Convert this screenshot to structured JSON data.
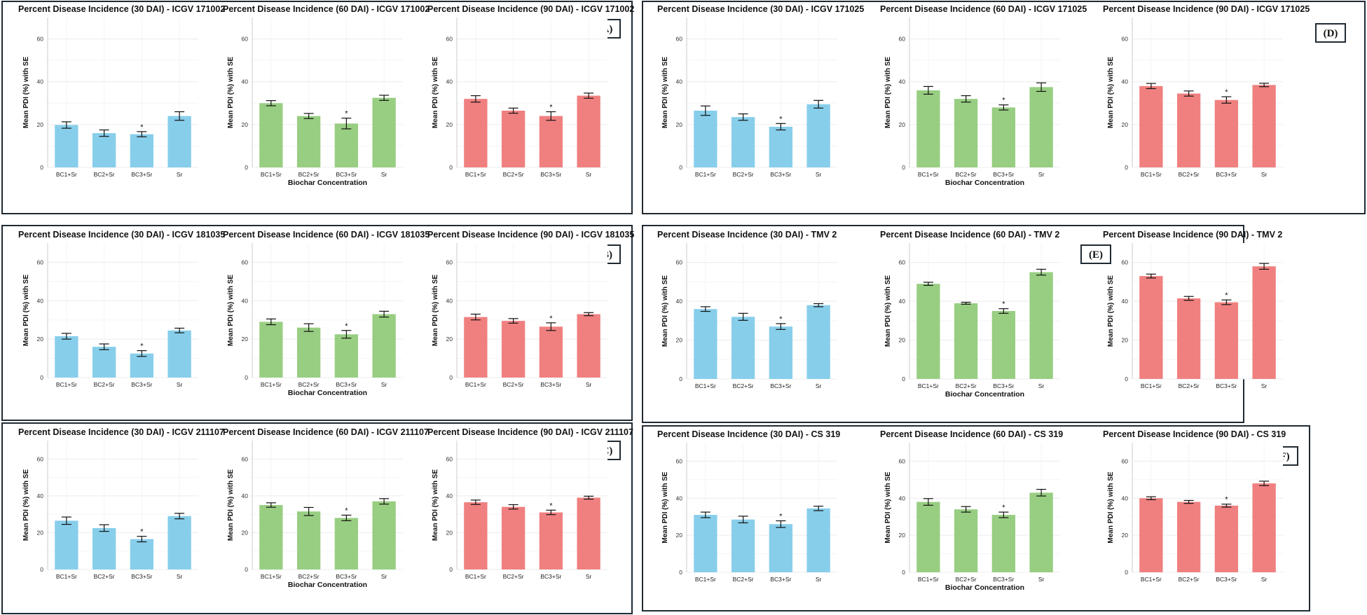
{
  "figure": {
    "panels": [
      {
        "letter": "(A)",
        "cultivar": "ICGV 171002",
        "xlabel": "Biochar Concentration",
        "ylabel": "Mean PDI (%) with SE"
      },
      {
        "letter": "(B)",
        "cultivar": "ICGV 181035",
        "xlabel": "Biochar Concentration",
        "ylabel": "Mean PDI (%) with SE"
      },
      {
        "letter": "(C)",
        "cultivar": "ICGV 211107",
        "xlabel": "Biochar Concentration",
        "ylabel": "Mean PDI (%) with SE"
      },
      {
        "letter": "(D)",
        "cultivar": "ICGV 171025",
        "xlabel": "Biochar Concentration",
        "ylabel": "Mean PDI (%) with SE"
      },
      {
        "letter": "(E)",
        "cultivar": "TMV 2",
        "xlabel": "Biochar Concentration",
        "ylabel": "Mean PDI (%) with SE"
      },
      {
        "letter": "(F)",
        "cultivar": "CS 319",
        "xlabel": "Biochar Concentration",
        "ylabel": "Mean PDI (%) with SE"
      }
    ]
  },
  "colors": {
    "dai30": "#87CEEB",
    "dai60": "#98CE82",
    "dai90": "#F08080"
  },
  "chart_data": [
    {
      "panel": 0,
      "type": "bar",
      "title": "Percent Disease Incidence (30 DAI) - ICGV 171002",
      "categories": [
        "BC1+Sr",
        "BC2+Sr",
        "BC3+Sr",
        "Sr"
      ],
      "values": [
        19.8,
        16.0,
        15.5,
        24.0
      ],
      "errors": [
        1.5,
        1.5,
        1.2,
        2.0
      ],
      "significant": [
        false,
        false,
        true,
        false
      ],
      "ylim": [
        0,
        70
      ],
      "yticks": [
        0,
        20,
        40,
        60
      ],
      "xlabel": "",
      "ylabel": "Mean PDI (%) with SE",
      "color": "#87CEEB"
    },
    {
      "panel": 0,
      "type": "bar",
      "title": "Percent Disease Incidence (60 DAI) - ICGV 171002",
      "categories": [
        "BC1+Sr",
        "BC2+Sr",
        "BC3+Sr",
        "Sr"
      ],
      "values": [
        30.0,
        24.0,
        20.5,
        32.5
      ],
      "errors": [
        1.2,
        1.2,
        2.5,
        1.2
      ],
      "significant": [
        false,
        false,
        true,
        false
      ],
      "ylim": [
        0,
        70
      ],
      "yticks": [
        0,
        20,
        40,
        60
      ],
      "xlabel": "",
      "ylabel": "Mean PDI (%) with SE",
      "color": "#98CE82"
    },
    {
      "panel": 0,
      "type": "bar",
      "title": "Percent Disease Incidence (90 DAI) - ICGV 171002",
      "categories": [
        "BC1+Sr",
        "BC2+Sr",
        "BC3+Sr",
        "Sr"
      ],
      "values": [
        32.0,
        26.5,
        24.0,
        33.5
      ],
      "errors": [
        1.5,
        1.2,
        2.0,
        1.2
      ],
      "significant": [
        false,
        false,
        true,
        false
      ],
      "ylim": [
        0,
        70
      ],
      "yticks": [
        0,
        20,
        40,
        60
      ],
      "xlabel": "Biochar Concentration",
      "ylabel": "Mean PDI (%) with SE",
      "color": "#F08080"
    },
    {
      "panel": 1,
      "type": "bar",
      "title": "Percent Disease Incidence (30 DAI) - ICGV 181035",
      "categories": [
        "BC1+Sr",
        "BC2+Sr",
        "BC3+Sr",
        "Sr"
      ],
      "values": [
        21.5,
        16.0,
        12.5,
        24.5
      ],
      "errors": [
        1.5,
        1.5,
        1.5,
        1.2
      ],
      "significant": [
        false,
        false,
        true,
        false
      ],
      "ylim": [
        0,
        70
      ],
      "yticks": [
        0,
        20,
        40,
        60
      ],
      "xlabel": "",
      "ylabel": "Mean PDI (%) with SE",
      "color": "#87CEEB"
    },
    {
      "panel": 1,
      "type": "bar",
      "title": "Percent Disease Incidence (60 DAI) - ICGV 181035",
      "categories": [
        "BC1+Sr",
        "BC2+Sr",
        "BC3+Sr",
        "Sr"
      ],
      "values": [
        29.0,
        26.0,
        22.5,
        33.0
      ],
      "errors": [
        1.5,
        2.0,
        2.0,
        1.5
      ],
      "significant": [
        false,
        false,
        true,
        false
      ],
      "ylim": [
        0,
        70
      ],
      "yticks": [
        0,
        20,
        40,
        60
      ],
      "xlabel": "",
      "ylabel": "Mean PDI (%) with SE",
      "color": "#98CE82"
    },
    {
      "panel": 1,
      "type": "bar",
      "title": "Percent Disease Incidence (90 DAI) - ICGV 181035",
      "categories": [
        "BC1+Sr",
        "BC2+Sr",
        "BC3+Sr",
        "Sr"
      ],
      "values": [
        31.5,
        29.5,
        26.5,
        33.0
      ],
      "errors": [
        1.5,
        1.2,
        2.0,
        0.8
      ],
      "significant": [
        false,
        false,
        true,
        false
      ],
      "ylim": [
        0,
        70
      ],
      "yticks": [
        0,
        20,
        40,
        60
      ],
      "xlabel": "Biochar Concentration",
      "ylabel": "Mean PDI (%) with SE",
      "color": "#F08080"
    },
    {
      "panel": 2,
      "type": "bar",
      "title": "Percent Disease Incidence (30 DAI) - ICGV 211107",
      "categories": [
        "BC1+Sr",
        "BC2+Sr",
        "BC3+Sr",
        "Sr"
      ],
      "values": [
        26.5,
        22.5,
        16.5,
        29.0
      ],
      "errors": [
        2.0,
        1.8,
        1.5,
        1.5
      ],
      "significant": [
        false,
        false,
        true,
        false
      ],
      "ylim": [
        0,
        70
      ],
      "yticks": [
        0,
        20,
        40,
        60
      ],
      "xlabel": "",
      "ylabel": "Mean PDI (%) with SE",
      "color": "#87CEEB"
    },
    {
      "panel": 2,
      "type": "bar",
      "title": "Percent Disease Incidence (60 DAI) - ICGV 211107",
      "categories": [
        "BC1+Sr",
        "BC2+Sr",
        "BC3+Sr",
        "Sr"
      ],
      "values": [
        35.0,
        31.5,
        28.0,
        37.0
      ],
      "errors": [
        1.2,
        2.2,
        1.5,
        1.5
      ],
      "significant": [
        false,
        false,
        true,
        false
      ],
      "ylim": [
        0,
        70
      ],
      "yticks": [
        0,
        20,
        40,
        60
      ],
      "xlabel": "",
      "ylabel": "Mean PDI (%) with SE",
      "color": "#98CE82"
    },
    {
      "panel": 2,
      "type": "bar",
      "title": "Percent Disease Incidence (90 DAI) - ICGV 211107",
      "categories": [
        "BC1+Sr",
        "BC2+Sr",
        "BC3+Sr",
        "Sr"
      ],
      "values": [
        36.5,
        34.0,
        31.0,
        39.0
      ],
      "errors": [
        1.2,
        1.2,
        1.2,
        0.8
      ],
      "significant": [
        false,
        false,
        true,
        false
      ],
      "ylim": [
        0,
        70
      ],
      "yticks": [
        0,
        20,
        40,
        60
      ],
      "xlabel": "Biochar Concentration",
      "ylabel": "Mean PDI (%) with SE",
      "color": "#F08080"
    },
    {
      "panel": 3,
      "type": "bar",
      "title": "Percent Disease Incidence (30 DAI) - ICGV 171025",
      "categories": [
        "BC1+Sr",
        "BC2+Sr",
        "BC3+Sr",
        "Sr"
      ],
      "values": [
        26.5,
        23.5,
        19.0,
        29.5
      ],
      "errors": [
        2.2,
        1.5,
        1.5,
        1.8
      ],
      "significant": [
        false,
        false,
        true,
        false
      ],
      "ylim": [
        0,
        70
      ],
      "yticks": [
        0,
        20,
        40,
        60
      ],
      "xlabel": "",
      "ylabel": "Mean PDI (%) with SE",
      "color": "#87CEEB"
    },
    {
      "panel": 3,
      "type": "bar",
      "title": "Percent Disease Incidence (60 DAI) - ICGV 171025",
      "categories": [
        "BC1+Sr",
        "BC2+Sr",
        "BC3+Sr",
        "Sr"
      ],
      "values": [
        36.0,
        32.0,
        28.0,
        37.5
      ],
      "errors": [
        1.8,
        1.5,
        1.2,
        2.0
      ],
      "significant": [
        false,
        false,
        true,
        false
      ],
      "ylim": [
        0,
        70
      ],
      "yticks": [
        0,
        20,
        40,
        60
      ],
      "xlabel": "",
      "ylabel": "Mean PDI (%) with SE",
      "color": "#98CE82"
    },
    {
      "panel": 3,
      "type": "bar",
      "title": "Percent Disease Incidence (90 DAI) - ICGV 171025",
      "categories": [
        "BC1+Sr",
        "BC2+Sr",
        "BC3+Sr",
        "Sr"
      ],
      "values": [
        38.0,
        34.5,
        31.5,
        38.5
      ],
      "errors": [
        1.2,
        1.2,
        1.5,
        0.8
      ],
      "significant": [
        false,
        false,
        true,
        false
      ],
      "ylim": [
        0,
        70
      ],
      "yticks": [
        0,
        20,
        40,
        60
      ],
      "xlabel": "Biochar Concentration",
      "ylabel": "Mean PDI (%) with SE",
      "color": "#F08080"
    },
    {
      "panel": 4,
      "type": "bar",
      "title": "Percent Disease Incidence (30 DAI) - TMV 2",
      "categories": [
        "BC1+Sr",
        "BC2+Sr",
        "BC3+Sr",
        "Sr"
      ],
      "values": [
        36.0,
        32.0,
        27.0,
        38.0
      ],
      "errors": [
        1.2,
        1.8,
        1.5,
        0.8
      ],
      "significant": [
        false,
        false,
        true,
        false
      ],
      "ylim": [
        0,
        70
      ],
      "yticks": [
        0,
        20,
        40,
        60
      ],
      "xlabel": "",
      "ylabel": "Mean PDI (%) with SE",
      "color": "#87CEEB"
    },
    {
      "panel": 4,
      "type": "bar",
      "title": "Percent Disease Incidence (60 DAI) - TMV 2",
      "categories": [
        "BC1+Sr",
        "BC2+Sr",
        "BC3+Sr",
        "Sr"
      ],
      "values": [
        49.0,
        39.0,
        35.0,
        55.0
      ],
      "errors": [
        0.8,
        0.5,
        1.2,
        1.5
      ],
      "significant": [
        false,
        false,
        true,
        false
      ],
      "ylim": [
        0,
        70
      ],
      "yticks": [
        0,
        20,
        40,
        60
      ],
      "xlabel": "",
      "ylabel": "Mean PDI (%) with SE",
      "color": "#98CE82"
    },
    {
      "panel": 4,
      "type": "bar",
      "title": "Percent Disease Incidence (90 DAI) - TMV 2",
      "categories": [
        "BC1+Sr",
        "BC2+Sr",
        "BC3+Sr",
        "Sr"
      ],
      "values": [
        53.0,
        41.5,
        39.5,
        58.0
      ],
      "errors": [
        1.0,
        1.0,
        1.2,
        1.5
      ],
      "significant": [
        false,
        false,
        true,
        false
      ],
      "ylim": [
        0,
        70
      ],
      "yticks": [
        0,
        20,
        40,
        60
      ],
      "xlabel": "Biochar Concentration",
      "ylabel": "Mean PDI (%) with SE",
      "color": "#F08080"
    },
    {
      "panel": 5,
      "type": "bar",
      "title": "Percent Disease Incidence (30 DAI) - CS 319",
      "categories": [
        "BC1+Sr",
        "BC2+Sr",
        "BC3+Sr",
        "Sr"
      ],
      "values": [
        31.0,
        28.5,
        26.0,
        34.5
      ],
      "errors": [
        1.5,
        1.8,
        1.8,
        1.2
      ],
      "significant": [
        false,
        false,
        true,
        false
      ],
      "ylim": [
        0,
        70
      ],
      "yticks": [
        0,
        20,
        40,
        60
      ],
      "xlabel": "",
      "ylabel": "Mean PDI (%) with SE",
      "color": "#87CEEB"
    },
    {
      "panel": 5,
      "type": "bar",
      "title": "Percent Disease Incidence (60 DAI) - CS 319",
      "categories": [
        "BC1+Sr",
        "BC2+Sr",
        "BC3+Sr",
        "Sr"
      ],
      "values": [
        38.0,
        34.0,
        31.0,
        43.0
      ],
      "errors": [
        1.8,
        1.5,
        1.5,
        1.8
      ],
      "significant": [
        false,
        false,
        true,
        false
      ],
      "ylim": [
        0,
        70
      ],
      "yticks": [
        0,
        20,
        40,
        60
      ],
      "xlabel": "",
      "ylabel": "Mean PDI (%) with SE",
      "color": "#98CE82"
    },
    {
      "panel": 5,
      "type": "bar",
      "title": "Percent Disease Incidence (90 DAI) - CS 319",
      "categories": [
        "BC1+Sr",
        "BC2+Sr",
        "BC3+Sr",
        "Sr"
      ],
      "values": [
        40.0,
        38.0,
        36.0,
        48.0
      ],
      "errors": [
        0.8,
        0.8,
        0.8,
        1.2
      ],
      "significant": [
        false,
        false,
        true,
        false
      ],
      "ylim": [
        0,
        70
      ],
      "yticks": [
        0,
        20,
        40,
        60
      ],
      "xlabel": "Biochar Concentration",
      "ylabel": "Mean PDI (%) with SE",
      "color": "#F08080"
    }
  ]
}
